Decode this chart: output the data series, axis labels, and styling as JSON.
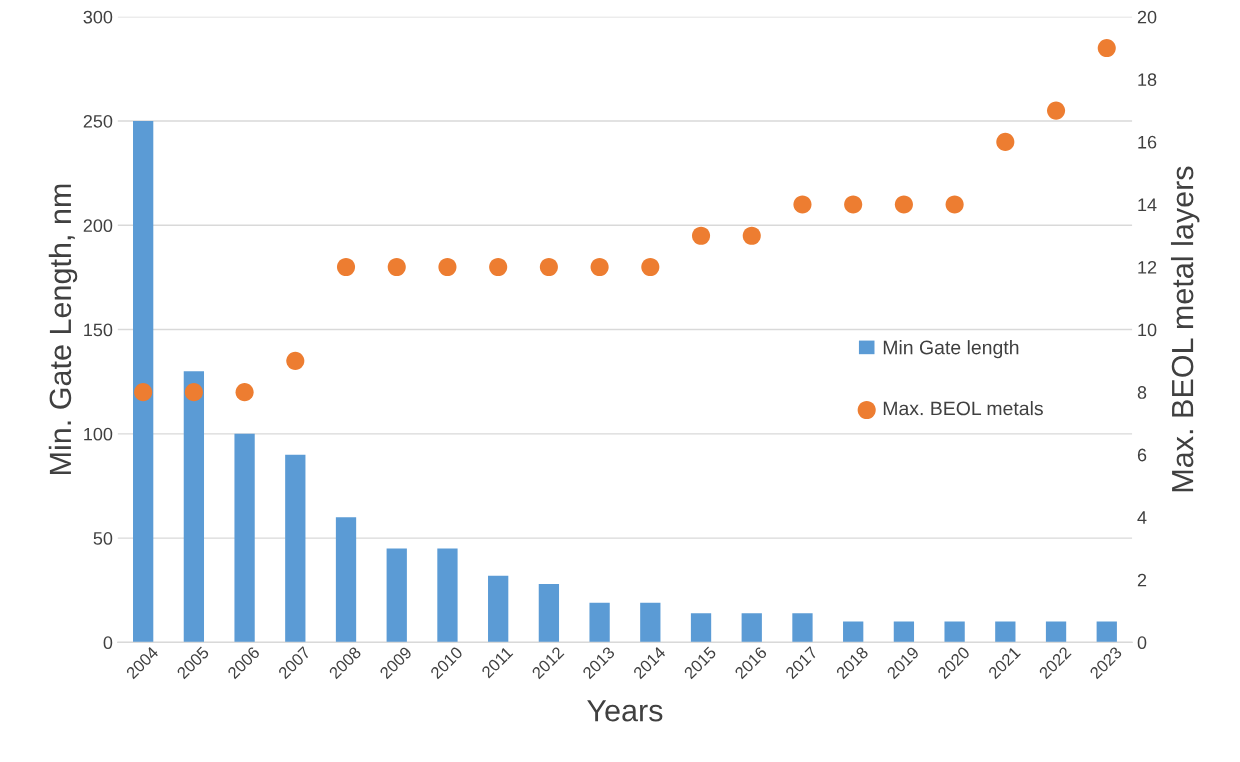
{
  "chart_data": {
    "type": "bar",
    "xlabel": "Years",
    "ylabel": "Min. Gate Length, nm",
    "y2label": "Max. BEOL metal layers",
    "categories": [
      "2004",
      "2005",
      "2006",
      "2007",
      "2008",
      "2009",
      "2010",
      "2011",
      "2012",
      "2013",
      "2014",
      "2015",
      "2016",
      "2017",
      "2018",
      "2019",
      "2020",
      "2021",
      "2022",
      "2023"
    ],
    "series": [
      {
        "name": "Min Gate length",
        "color": "#5b9bd5",
        "values": [
          250,
          130,
          100,
          90,
          60,
          45,
          45,
          32,
          28,
          19,
          19,
          14,
          14,
          14,
          10,
          10,
          10,
          10,
          10,
          10
        ]
      },
      {
        "name": "Max. BEOL metals",
        "type": "scatter",
        "axis": "y2",
        "marker": "circle",
        "color": "#ed7d31",
        "values": [
          8,
          8,
          8,
          9,
          12,
          12,
          12,
          12,
          12,
          12,
          12,
          13,
          13,
          14,
          14,
          14,
          14,
          16,
          17,
          19
        ]
      }
    ],
    "ylim": [
      0,
      300
    ],
    "yticks": [
      0,
      50,
      100,
      150,
      200,
      250,
      300
    ],
    "y2lim": [
      0,
      20
    ],
    "y2ticks": [
      0,
      2,
      4,
      6,
      8,
      10,
      12,
      14,
      16,
      18,
      20
    ],
    "grid": "y",
    "legend": "right"
  }
}
